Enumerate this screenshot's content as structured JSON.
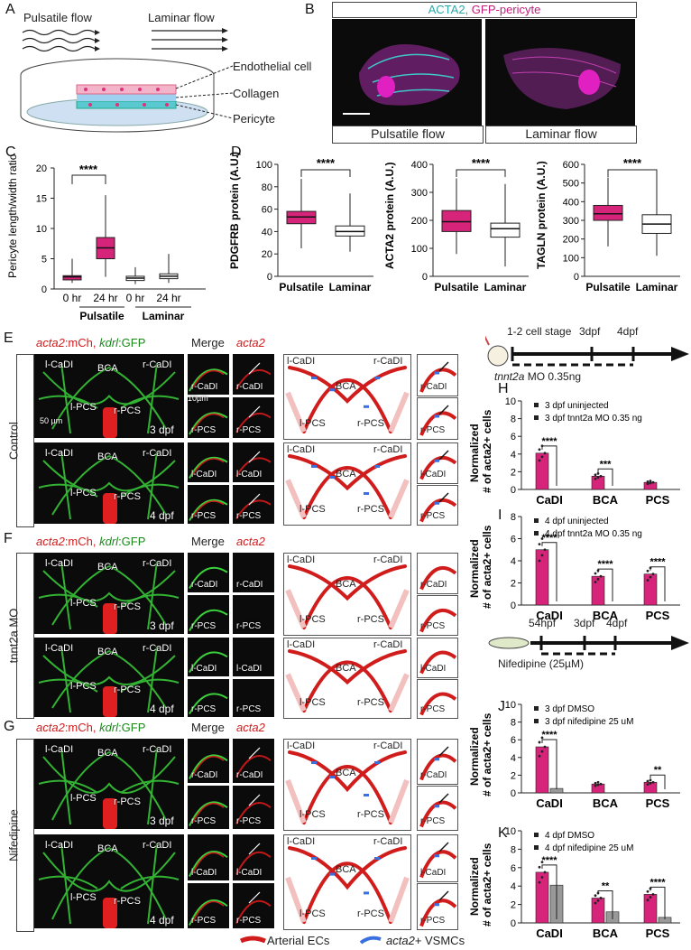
{
  "panels": {
    "A": "A",
    "B": "B",
    "C": "C",
    "D": "D",
    "E": "E",
    "F": "F",
    "G": "G",
    "H": "H",
    "I": "I",
    "J": "J",
    "K": "K"
  },
  "panelA": {
    "pulsatile": "Pulsatile flow",
    "laminar": "Laminar flow",
    "endothelial": "Endothelial cell",
    "collagen": "Collagen",
    "pericyte": "Pericyte"
  },
  "panelB": {
    "acta2": "ACTA2,",
    "gfp": "GFP-pericyte",
    "pulsatile": "Pulsatile flow",
    "laminar": "Laminar flow"
  },
  "colors": {
    "magenta": "#d6247a",
    "green": "#3ad13a",
    "cyan": "#3fc7c7",
    "red": "#d11c1c",
    "blue": "#3a6fe0"
  },
  "panelC": {
    "ylabel": "Pericyte length/width ratio",
    "ticks": [
      "0",
      "5",
      "10",
      "15",
      "20"
    ],
    "xticks": [
      "0 hr",
      "24 hr",
      "0 hr",
      "24 hr"
    ],
    "groups": [
      "Pulsatile",
      "Laminar"
    ],
    "sig": "****"
  },
  "chart_data": [
    {
      "type": "box",
      "ylabel": "Pericyte length/width ratio",
      "ylim": [
        0,
        20
      ],
      "categories": [
        "Pulsatile 0 hr",
        "Pulsatile 24 hr",
        "Laminar 0 hr",
        "Laminar 24 hr"
      ],
      "values": [
        2.0,
        6.8,
        1.8,
        2.1
      ]
    },
    {
      "type": "box",
      "ylabel": "PDGFRB protein (A.U.)",
      "ylim": [
        0,
        100
      ],
      "categories": [
        "Pulsatile",
        "Laminar"
      ],
      "values": [
        53,
        40
      ]
    },
    {
      "type": "box",
      "ylabel": "ACTA2 protein (A.U.)",
      "ylim": [
        0,
        400
      ],
      "categories": [
        "Pulsatile",
        "Laminar"
      ],
      "values": [
        195,
        170
      ]
    },
    {
      "type": "box",
      "ylabel": "TAGLN protein (A.U.)",
      "ylim": [
        0,
        600
      ],
      "categories": [
        "Pulsatile",
        "Laminar"
      ],
      "values": [
        335,
        280
      ]
    },
    {
      "type": "bar",
      "ylabel": "Normalized # of acta2+ cells",
      "ylim": [
        0,
        10
      ],
      "categories": [
        "CaDI",
        "BCA",
        "PCS"
      ],
      "series": [
        {
          "name": "3 dpf uninjected",
          "values": [
            4.1,
            1.5,
            0.8
          ]
        },
        {
          "name": "3 dpf tnnt2a MO 0.35 ng",
          "values": [
            0,
            0,
            0
          ]
        }
      ]
    },
    {
      "type": "bar",
      "ylabel": "Normalized # of acta2+ cells",
      "ylim": [
        0,
        8
      ],
      "categories": [
        "CaDI",
        "BCA",
        "PCS"
      ],
      "series": [
        {
          "name": "4 dpf uninjected",
          "values": [
            5.0,
            2.6,
            2.8
          ]
        },
        {
          "name": "4 dpf tnnt2a MO 0.35 ng",
          "values": [
            0,
            0,
            0
          ]
        }
      ]
    },
    {
      "type": "bar",
      "ylabel": "Normalized # of acta2+ cells",
      "ylim": [
        0,
        10
      ],
      "categories": [
        "CaDI",
        "BCA",
        "PCS"
      ],
      "series": [
        {
          "name": "3 dpf DMSO",
          "values": [
            5.2,
            1.0,
            1.2
          ]
        },
        {
          "name": "3 dpf nifedipine 25 uM",
          "values": [
            0.5,
            0,
            0
          ]
        }
      ]
    },
    {
      "type": "bar",
      "ylabel": "Normalized # of acta2+ cells",
      "ylim": [
        0,
        10
      ],
      "categories": [
        "CaDI",
        "BCA",
        "PCS"
      ],
      "series": [
        {
          "name": "4 dpf DMSO",
          "values": [
            5.5,
            2.7,
            3.1
          ]
        },
        {
          "name": "4 dpf nifedipine 25 uM",
          "values": [
            4.1,
            1.2,
            0.6
          ]
        }
      ]
    }
  ],
  "panelD": {
    "plots": [
      {
        "ylabel": "PDGFRB protein (A.U.)",
        "ticks": [
          "0",
          "20",
          "40",
          "60",
          "80",
          "100"
        ]
      },
      {
        "ylabel": "ACTA2 protein (A.U.)",
        "ticks": [
          "0",
          "100",
          "200",
          "300",
          "400"
        ]
      },
      {
        "ylabel": "TAGLN protein (A.U.)",
        "ticks": [
          "0",
          "100",
          "200",
          "300",
          "400",
          "500",
          "600"
        ]
      }
    ],
    "x1": "Pulsatile",
    "x2": "Laminar",
    "sig": "****"
  },
  "panelE": {
    "title_red": "acta2",
    ":mCh": ":mCh,",
    "title_green": "kdrl",
    ":GFP": ":GFP",
    "merge": "Merge",
    "acta2": "acta2",
    "side": "Control",
    "labels": {
      "lcadi": "l-CaDI",
      "rcadi": "r-CaDI",
      "bca": "BCA",
      "lpcs": "l-PCS",
      "rpcs": "r-PCS",
      "d3": "3 dpf",
      "d4": "4 dpf",
      "scale50": "50 µm",
      "scale10": "10µm"
    }
  },
  "panelF": {
    "side": "tnnt2a MO",
    "side2": "MO"
  },
  "panelG": {
    "side": "Nifedipine"
  },
  "legend": {
    "arterial": "Arterial ECs",
    "vsmc_i": "acta2",
    "vsmc": "+ VSMCs"
  },
  "timeline1": {
    "stage": "1-2 cell stage",
    "d3": "3dpf",
    "d4": "4dpf",
    "mo": "tnnt2a",
    "mo2": " MO 0.35ng"
  },
  "timeline2": {
    "hpf": "54hpf",
    "d3": "3dpf",
    "d4": "4dpf",
    "drug": "Nifedipine (25µM)"
  },
  "bars": {
    "ylabel1": "Normalized",
    "ylabel2": "# of acta2+ cells",
    "cats": [
      "CaDI",
      "BCA",
      "PCS"
    ],
    "H": {
      "leg1": "3 dpf uninjected",
      "leg2": "3 dpf tnnt2a MO 0.35 ng",
      "ticks": [
        "0",
        "2",
        "4",
        "6",
        "8",
        "10"
      ],
      "sig": [
        "****",
        "***",
        ""
      ]
    },
    "I": {
      "leg1": "4 dpf uninjected",
      "leg2": "4 dpf tnnt2a MO 0.35 ng",
      "ticks": [
        "0",
        "2",
        "4",
        "6",
        "8"
      ],
      "sig": [
        "****",
        "****",
        "****"
      ]
    },
    "J": {
      "leg1": "3 dpf DMSO",
      "leg2": "3 dpf nifedipine 25 uM",
      "ticks": [
        "0",
        "2",
        "4",
        "6",
        "8",
        "10"
      ],
      "sig": [
        "****",
        "",
        "**"
      ]
    },
    "K": {
      "leg1": "4 dpf DMSO",
      "leg2": "4 dpf nifedipine 25 uM",
      "ticks": [
        "0",
        "2",
        "4",
        "6",
        "8",
        "10"
      ],
      "sig": [
        "****",
        "**",
        "****"
      ]
    }
  }
}
